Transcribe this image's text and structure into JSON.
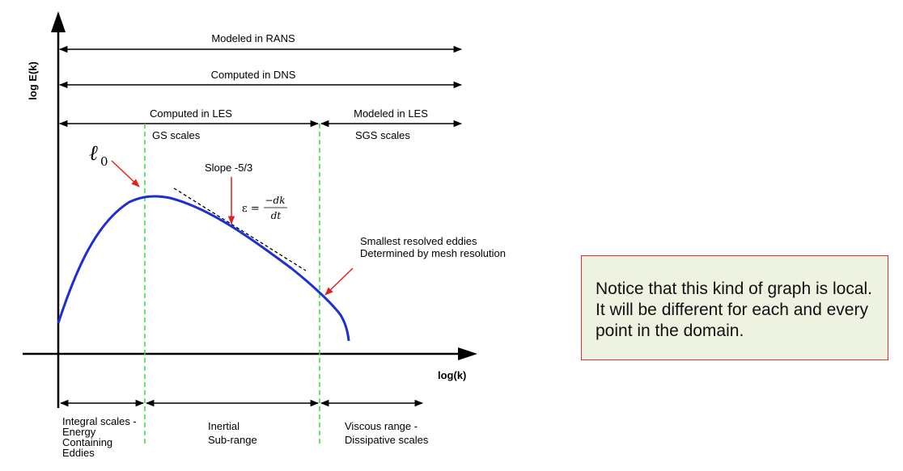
{
  "axes": {
    "y_label": "log E(k)",
    "x_label": "log(k)"
  },
  "ranges": {
    "rans": "Modeled in RANS",
    "dns": "Computed in DNS",
    "les_computed": "Computed in LES",
    "les_modeled": "Modeled in LES"
  },
  "scales": {
    "gs": "GS scales",
    "sgs": "SGS scales"
  },
  "annotations": {
    "l0_symbol": "ℓ",
    "l0_subscript": "0",
    "slope": "Slope -5/3",
    "epsilon_lhs": "ε =",
    "epsilon_num": "−dk",
    "epsilon_den": "dt",
    "smallest_line1": "Smallest resolved eddies",
    "smallest_line2": "Determined by mesh resolution"
  },
  "regions": {
    "integral_line1": "Integral scales -",
    "integral_line2": "Energy",
    "integral_line3": "Containing",
    "integral_line4": "Eddies",
    "inertial_line1": "Inertial",
    "inertial_line2": "Sub-range",
    "viscous_line1": "Viscous range -",
    "viscous_line2": "Dissipative scales"
  },
  "note": {
    "text": "Notice that this kind of graph is local.  It will be different for each and every point in the domain."
  },
  "colors": {
    "curve": "#1a2fd6",
    "cutoff": "#33dd33",
    "pointer": "#e02020",
    "note_border": "#e03030",
    "note_fill": "#eef2e0"
  }
}
